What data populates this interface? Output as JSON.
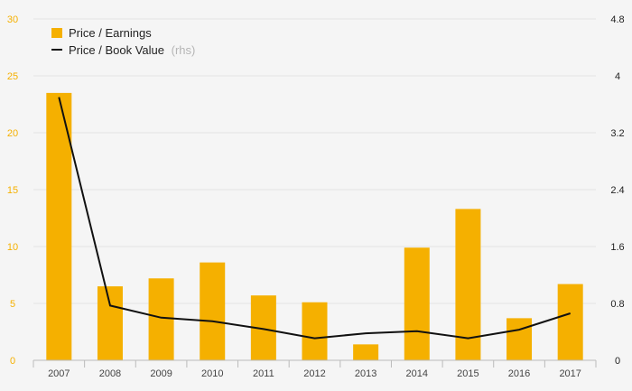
{
  "chart_data": {
    "type": "bar",
    "categories": [
      "2007",
      "2008",
      "2009",
      "2010",
      "2011",
      "2012",
      "2013",
      "2014",
      "2015",
      "2016",
      "2017"
    ],
    "series": [
      {
        "name": "Price / Earnings",
        "type": "bar",
        "axis": "left",
        "color": "#f5b000",
        "values": [
          23.5,
          6.5,
          7.2,
          8.6,
          5.7,
          5.1,
          1.4,
          9.9,
          13.3,
          3.7,
          6.7
        ]
      },
      {
        "name": "Price / Book Value",
        "name_suffix": "(rhs)",
        "type": "line",
        "axis": "right",
        "color": "#111111",
        "values": [
          3.7,
          0.77,
          0.6,
          0.55,
          0.44,
          0.31,
          0.38,
          0.41,
          0.31,
          0.43,
          0.66
        ]
      }
    ],
    "y_left": {
      "min": 0,
      "max": 30,
      "ticks": [
        "0",
        "5",
        "10",
        "15",
        "20",
        "25",
        "30"
      ],
      "color": "#f5b000"
    },
    "y_right": {
      "min": 0,
      "max": 4.8,
      "ticks": [
        "0",
        "0.8",
        "1.6",
        "2.4",
        "3.2",
        "4",
        "4.8"
      ],
      "color": "#222222"
    },
    "grid": true,
    "legend_position": "top-left",
    "title": "",
    "xlabel": "",
    "ylabel": ""
  }
}
